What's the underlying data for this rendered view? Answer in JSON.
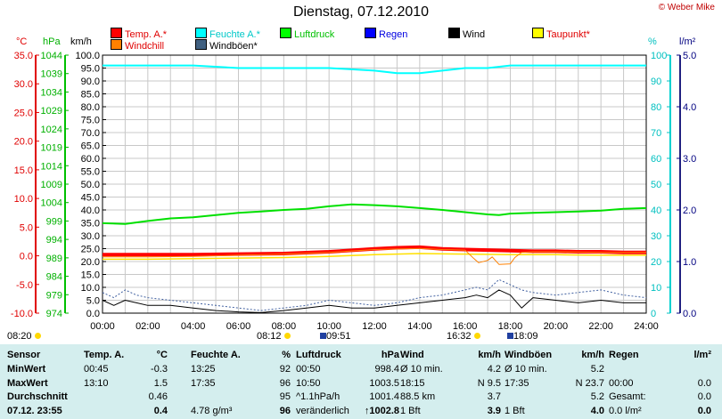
{
  "title": "Dienstag, 07.12.2010",
  "copyright": "© Weber Mike",
  "legend": [
    {
      "label": "Temp. A.*",
      "color": "#ff0000"
    },
    {
      "label": "Feuchte A.*",
      "color": "#00ffff"
    },
    {
      "label": "Luftdruck",
      "color": "#00ff00"
    },
    {
      "label": "Regen",
      "color": "#0000ff"
    },
    {
      "label": "Wind",
      "color": "#000000"
    },
    {
      "label": "Taupunkt*",
      "color": "#ffff00"
    },
    {
      "label": "Windchill",
      "color": "#ff8000"
    },
    {
      "label": "Windböen*",
      "color": "#406080"
    }
  ],
  "axis_headers": {
    "temp": "°C",
    "pressure": "hPa",
    "wind": "km/h",
    "humidity": "%",
    "rain": "l/m²"
  },
  "sun": {
    "sunrise": "08:20",
    "sunset": "16:32",
    "rise_mark": "08:12",
    "set_mark": "18:09",
    "moon": "09:51"
  },
  "chart_data": {
    "type": "line",
    "x_ticks": [
      "00:00",
      "02:00",
      "04:00",
      "06:00",
      "08:00",
      "10:00",
      "12:00",
      "14:00",
      "16:00",
      "18:00",
      "20:00",
      "22:00",
      "24:00"
    ],
    "temp_ticks": [
      "35.0",
      "30.0",
      "25.0",
      "20.0",
      "15.0",
      "10.0",
      "5.0",
      "0.0",
      "-5.0",
      "-10.0"
    ],
    "pressure_ticks": [
      "1044",
      "1039",
      "1034",
      "1029",
      "1024",
      "1019",
      "1014",
      "1009",
      "1004",
      "999",
      "994",
      "989",
      "984",
      "979",
      "974"
    ],
    "wind_ticks": [
      "100.0",
      "95.0",
      "90.0",
      "85.0",
      "80.0",
      "75.0",
      "70.0",
      "65.0",
      "60.0",
      "55.0",
      "50.0",
      "45.0",
      "40.0",
      "35.0",
      "30.0",
      "25.0",
      "20.0",
      "15.0",
      "10.0",
      "5.0",
      "0.0"
    ],
    "humidity_ticks": [
      "100",
      "90",
      "80",
      "70",
      "60",
      "50",
      "40",
      "30",
      "20",
      "10",
      "0"
    ],
    "rain_ticks": [
      "5.0",
      "4.0",
      "3.0",
      "2.0",
      "1.0",
      "0.0"
    ],
    "ylim_temp": [
      -10,
      35
    ],
    "ylim_pressure": [
      974,
      1044
    ],
    "ylim_wind": [
      0,
      100
    ],
    "ylim_humidity": [
      0,
      100
    ],
    "ylim_rain": [
      0,
      5
    ],
    "series": [
      {
        "name": "Feuchte A.*",
        "axis": "humidity",
        "color": "#00ffff",
        "width": 2,
        "x": [
          0,
          2,
          4,
          6,
          7,
          8,
          10,
          12,
          13,
          14,
          15,
          16,
          17,
          18,
          20,
          22,
          24
        ],
        "y": [
          96,
          96,
          96,
          95,
          95,
          95,
          95,
          94,
          93,
          93,
          94,
          95,
          95,
          96,
          96,
          96,
          96
        ]
      },
      {
        "name": "Luftdruck",
        "axis": "pressure",
        "color": "#00e000",
        "width": 2,
        "x": [
          0,
          1,
          2,
          3,
          4,
          5,
          6,
          7,
          8,
          9,
          10,
          11,
          12,
          13,
          14,
          15,
          16,
          17,
          17.5,
          18,
          19,
          20,
          21,
          22,
          23,
          24
        ],
        "y": [
          998.4,
          998.2,
          999.0,
          999.7,
          1000.0,
          1000.6,
          1001.2,
          1001.6,
          1002.0,
          1002.3,
          1003.0,
          1003.5,
          1003.3,
          1003.0,
          1002.5,
          1002.0,
          1001.4,
          1000.8,
          1000.6,
          1001.0,
          1001.2,
          1001.4,
          1001.6,
          1001.8,
          1002.3,
          1002.5
        ]
      },
      {
        "name": "Temp. A.*",
        "axis": "temp",
        "color": "#ff0000",
        "width": 4,
        "x": [
          0,
          2,
          4,
          6,
          8,
          10,
          12,
          13,
          14,
          15,
          16,
          17,
          18,
          19,
          20,
          21,
          22,
          23,
          24
        ],
        "y": [
          0.2,
          0.2,
          0.2,
          0.3,
          0.4,
          0.7,
          1.2,
          1.4,
          1.5,
          1.2,
          1.1,
          1.0,
          0.9,
          0.8,
          0.8,
          0.7,
          0.7,
          0.6,
          0.6
        ]
      },
      {
        "name": "Taupunkt*",
        "axis": "temp",
        "color": "#ffe000",
        "width": 1.5,
        "x": [
          0,
          2,
          4,
          6,
          8,
          10,
          12,
          14,
          16,
          18,
          20,
          22,
          24
        ],
        "y": [
          -0.6,
          -0.6,
          -0.5,
          -0.4,
          -0.3,
          -0.1,
          0.2,
          0.4,
          0.3,
          0.2,
          0.2,
          0.1,
          0.1
        ]
      },
      {
        "name": "Windchill",
        "axis": "temp",
        "color": "#ff8000",
        "width": 1,
        "x": [
          0,
          2,
          4,
          6,
          8,
          10,
          12,
          14,
          15,
          16,
          16.4,
          16.6,
          17,
          17.2,
          17.5,
          18,
          18.2,
          18.5,
          19,
          20,
          22,
          24
        ],
        "y": [
          -0.2,
          -0.2,
          -0.1,
          0.1,
          0.3,
          0.6,
          1.1,
          1.3,
          1.1,
          1.0,
          -0.5,
          -1.2,
          -0.8,
          -0.2,
          -1.5,
          -1.4,
          -0.3,
          0.6,
          0.7,
          0.7,
          0.6,
          0.6
        ]
      },
      {
        "name": "Windböen*",
        "axis": "wind",
        "color": "#4060a0",
        "width": 1,
        "dash": "2,2",
        "x": [
          0,
          0.5,
          1,
          1.5,
          2,
          3,
          4,
          5,
          6,
          7,
          8,
          9,
          10,
          11,
          12,
          13,
          14,
          15,
          16,
          16.5,
          17,
          17.5,
          18,
          18.5,
          19,
          20,
          21,
          22,
          23,
          24
        ],
        "y": [
          8,
          6,
          9,
          7,
          6,
          5,
          4,
          3,
          2,
          1,
          2,
          3,
          5,
          4,
          3,
          4,
          6,
          7,
          9,
          10,
          9,
          13,
          11,
          9,
          8,
          7,
          8,
          9,
          7,
          6
        ]
      },
      {
        "name": "Wind",
        "axis": "wind",
        "color": "#000000",
        "width": 1,
        "x": [
          0,
          0.5,
          1,
          1.5,
          2,
          3,
          4,
          5,
          6,
          7,
          8,
          9,
          10,
          11,
          12,
          13,
          14,
          15,
          16,
          16.5,
          17,
          17.5,
          18,
          18.5,
          19,
          20,
          21,
          22,
          23,
          24
        ],
        "y": [
          5,
          3,
          5,
          4,
          3,
          3,
          2,
          1,
          0.5,
          0.2,
          1,
          2,
          3,
          2,
          2,
          3,
          4,
          5,
          6,
          7,
          6,
          9,
          7,
          2,
          6,
          5,
          4,
          5,
          4,
          4
        ]
      }
    ]
  },
  "table": {
    "headers": [
      "Sensor",
      "Temp. A.",
      "°C",
      "Feuchte A.",
      "%",
      "Luftdruck",
      "hPa",
      "Wind",
      "km/h",
      "Windböen",
      "km/h",
      "Regen",
      "l/m²"
    ],
    "rows": [
      [
        "MinWert",
        "00:45",
        "-0.3",
        "13:25",
        "92",
        "00:50",
        "998.4",
        "Ø 10 min.",
        "4.2",
        "Ø 10 min.",
        "5.2",
        "",
        ""
      ],
      [
        "MaxWert",
        "13:10",
        "1.5",
        "17:35",
        "96",
        "10:50",
        "1003.5",
        "18:15",
        "N 9.5",
        "17:35",
        "N 23.7",
        "00:00",
        "0.0"
      ],
      [
        "Durchschnitt",
        "",
        "0.46",
        "",
        "95",
        "^1.1hPa/h",
        "1001.4",
        "88.5 km",
        "3.7",
        "",
        "5.2",
        "Gesamt:",
        "0.0"
      ],
      [
        "07.12. 23:55",
        "",
        "0.4",
        "4.78 g/m³",
        "96",
        "veränderlich",
        "↑1002.8",
        "1 Bft",
        "3.9",
        "1 Bft",
        "4.0",
        "0.0 l/m²",
        "0.0"
      ]
    ]
  }
}
